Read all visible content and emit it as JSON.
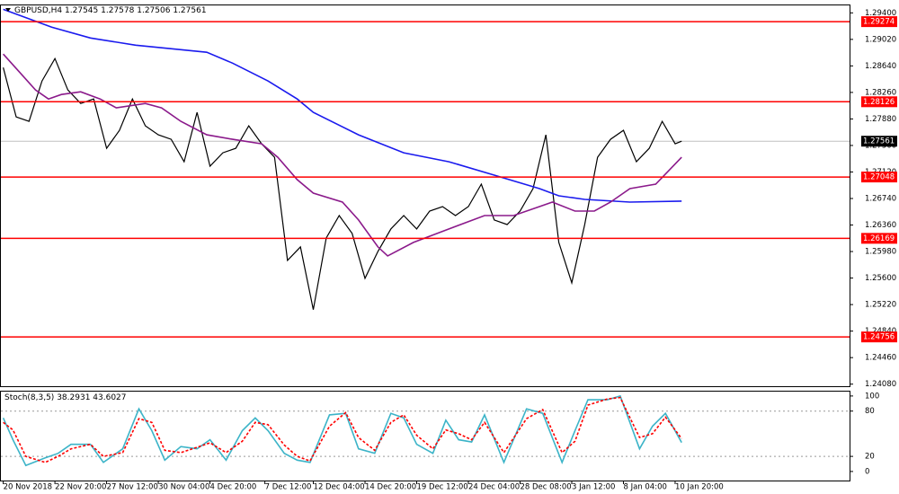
{
  "chart_data": [
    {
      "type": "line",
      "title": "GBPUSD,H4",
      "ohlc": [
        1.27545,
        1.27578,
        1.27506,
        1.27561
      ],
      "xlim": [
        -1,
        262
      ],
      "ylim": [
        1.2405,
        1.2952
      ],
      "xticks": [
        {
          "value": 0,
          "label": "20 Nov 2018"
        },
        {
          "value": 16,
          "label": "22 Nov 20:00"
        },
        {
          "value": 32,
          "label": "27 Nov 12:00"
        },
        {
          "value": 48,
          "label": "30 Nov 04:00"
        },
        {
          "value": 64,
          "label": "4 Dec 20:00"
        },
        {
          "value": 81,
          "label": "7 Dec 12:00"
        },
        {
          "value": 96,
          "label": "12 Dec 04:00"
        },
        {
          "value": 112,
          "label": "14 Dec 20:00"
        },
        {
          "value": 128,
          "label": "19 Dec 12:00"
        },
        {
          "value": 144,
          "label": "24 Dec 04:00"
        },
        {
          "value": 160,
          "label": "28 Dec 08:00"
        },
        {
          "value": 176,
          "label": "3 Jan 12:00"
        },
        {
          "value": 192,
          "label": "8 Jan 04:00"
        },
        {
          "value": 208,
          "label": "10 Jan 20:00"
        }
      ],
      "yticks": [
        {
          "value": 1.294,
          "label": "1.29400"
        },
        {
          "value": 1.2902,
          "label": "1.29020"
        },
        {
          "value": 1.2864,
          "label": "1.28640"
        },
        {
          "value": 1.2826,
          "label": "1.28260"
        },
        {
          "value": 1.2788,
          "label": "1.27880"
        },
        {
          "value": 1.275,
          "label": "1.27500"
        },
        {
          "value": 1.2712,
          "label": "1.27120"
        },
        {
          "value": 1.2674,
          "label": "1.26740"
        },
        {
          "value": 1.2636,
          "label": "1.26360"
        },
        {
          "value": 1.2598,
          "label": "1.25980"
        },
        {
          "value": 1.256,
          "label": "1.25600"
        },
        {
          "value": 1.2522,
          "label": "1.25220"
        },
        {
          "value": 1.2484,
          "label": "1.24840"
        },
        {
          "value": 1.2446,
          "label": "1.24460"
        },
        {
          "value": 1.2408,
          "label": "1.24080"
        }
      ],
      "levels": [
        1.29274,
        1.28126,
        1.27048,
        1.26169,
        1.24756
      ],
      "level_color": "#ff0000",
      "series": [
        {
          "color": "#000000",
          "x": [
            0,
            4,
            8,
            12,
            16,
            20,
            24,
            28,
            32,
            36,
            40,
            44,
            48,
            52,
            56,
            60,
            64,
            68,
            72,
            76,
            80,
            84,
            88,
            92,
            96,
            100,
            104,
            108,
            112,
            116,
            120,
            124,
            128,
            132,
            136,
            140,
            144,
            148,
            152,
            156,
            160,
            164,
            168,
            172,
            176,
            180,
            184,
            188,
            192,
            196,
            200,
            204,
            208,
            210
          ],
          "values": [
            1.28616,
            1.27909,
            1.27845,
            1.28423,
            1.28745,
            1.28295,
            1.28102,
            1.28166,
            1.2746,
            1.27717,
            1.28166,
            1.27781,
            1.27652,
            1.27588,
            1.27267,
            1.27974,
            1.27203,
            1.27395,
            1.2746,
            1.27781,
            1.27524,
            1.27331,
            1.25853,
            1.26046,
            1.25147,
            1.26175,
            1.26496,
            1.26239,
            1.25596,
            1.25982,
            1.26303,
            1.26496,
            1.26303,
            1.2656,
            1.26624,
            1.26496,
            1.26624,
            1.26946,
            1.26432,
            1.26367,
            1.2656,
            1.26881,
            1.27652,
            1.2611,
            1.25532,
            1.26367,
            1.27331,
            1.27588,
            1.27717,
            1.27267,
            1.2746,
            1.27845,
            1.27524,
            1.27561
          ]
        },
        {
          "color": "#1a1aee",
          "x": [
            0,
            15,
            27,
            41,
            55,
            63,
            71,
            82,
            91,
            96,
            110,
            124,
            138,
            152,
            166,
            172,
            180,
            194,
            210
          ],
          "values": [
            1.29451,
            1.29194,
            1.2904,
            1.28937,
            1.28873,
            1.28835,
            1.2868,
            1.28423,
            1.28166,
            1.27974,
            1.27652,
            1.27395,
            1.27267,
            1.27074,
            1.26881,
            1.26779,
            1.26727,
            1.26689,
            1.26702
          ]
        },
        {
          "color": "#8b1a8b",
          "x": [
            0,
            5,
            10,
            14,
            18,
            24,
            30,
            35,
            44,
            49,
            55,
            63,
            71,
            80,
            85,
            91,
            96,
            105,
            110,
            116,
            119,
            127,
            138,
            149,
            158,
            166,
            170,
            177,
            183,
            188,
            194,
            202,
            206,
            210
          ],
          "values": [
            1.28809,
            1.28552,
            1.28295,
            1.28166,
            1.28231,
            1.28269,
            1.28166,
            1.28038,
            1.28102,
            1.28038,
            1.27845,
            1.27652,
            1.27588,
            1.27524,
            1.27331,
            1.2701,
            1.26817,
            1.26689,
            1.26432,
            1.26046,
            1.25918,
            1.2611,
            1.26303,
            1.26496,
            1.26496,
            1.26624,
            1.26689,
            1.2656,
            1.2656,
            1.26689,
            1.26881,
            1.26946,
            1.27138,
            1.27331
          ]
        }
      ]
    },
    {
      "type": "line",
      "title": "Stoch(8,3,5)",
      "ylim": [
        -12,
        107
      ],
      "yticks": [
        0,
        20,
        80,
        100
      ],
      "series": [
        {
          "color": "#3cb4c8",
          "dash": false,
          "x": [
            0,
            3,
            7,
            13,
            17,
            21,
            27,
            31,
            37,
            42,
            46,
            50,
            55,
            60,
            64,
            69,
            74,
            78,
            82,
            87,
            91,
            95,
            101,
            106,
            110,
            115,
            120,
            124,
            128,
            133,
            137,
            141,
            145,
            149,
            155,
            162,
            167,
            173,
            177,
            181,
            187,
            191,
            197,
            201,
            205,
            210
          ],
          "values": [
            71,
            42,
            8,
            18,
            24,
            36,
            36,
            12,
            30,
            83,
            54,
            15,
            33,
            30,
            42,
            15,
            54,
            71,
            54,
            24,
            15,
            12,
            75,
            77,
            30,
            24,
            77,
            71,
            36,
            24,
            68,
            42,
            39,
            75,
            12,
            83,
            77,
            12,
            54,
            95,
            95,
            100,
            30,
            60,
            77,
            38.2931
          ]
        },
        {
          "color": "#ff0000",
          "dash": true,
          "x": [
            0,
            3,
            7,
            13,
            17,
            21,
            27,
            31,
            37,
            42,
            46,
            50,
            55,
            60,
            64,
            69,
            74,
            78,
            82,
            87,
            91,
            95,
            101,
            106,
            110,
            115,
            120,
            124,
            128,
            133,
            137,
            141,
            145,
            149,
            155,
            162,
            167,
            173,
            177,
            181,
            187,
            191,
            197,
            201,
            205,
            210
          ],
          "values": [
            65,
            55,
            20,
            12,
            20,
            30,
            36,
            20,
            25,
            70,
            65,
            28,
            25,
            32,
            38,
            25,
            40,
            65,
            62,
            35,
            20,
            14,
            60,
            78,
            45,
            28,
            65,
            75,
            48,
            30,
            55,
            50,
            42,
            65,
            25,
            70,
            82,
            25,
            40,
            88,
            96,
            98,
            45,
            50,
            72,
            43.6027
          ]
        }
      ]
    }
  ]
}
